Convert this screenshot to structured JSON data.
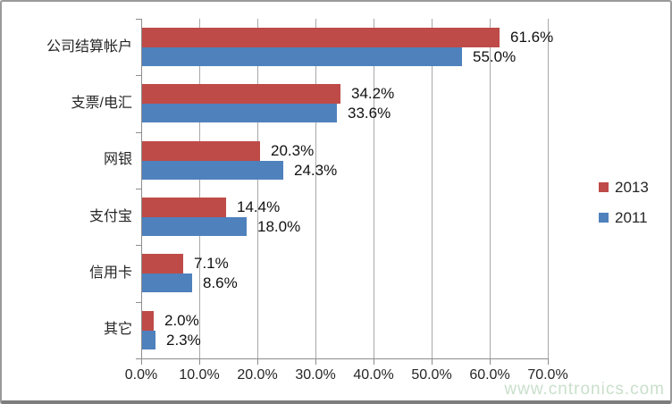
{
  "chart_data": {
    "type": "bar",
    "orientation": "horizontal",
    "categories": [
      "公司结算帐户",
      "支票/电汇",
      "网银",
      "支付宝",
      "信用卡",
      "其它"
    ],
    "series": [
      {
        "name": "2013",
        "color": "#be4b48",
        "values": [
          61.6,
          34.2,
          20.3,
          14.4,
          7.1,
          2.0
        ],
        "labels": [
          "61.6%",
          "34.2%",
          "20.3%",
          "14.4%",
          "7.1%",
          "2.0%"
        ]
      },
      {
        "name": "2011",
        "color": "#4f81bd",
        "values": [
          55.0,
          33.6,
          24.3,
          18.0,
          8.6,
          2.3
        ],
        "labels": [
          "55.0%",
          "33.6%",
          "24.3%",
          "18.0%",
          "8.6%",
          "2.3%"
        ]
      }
    ],
    "x_axis": {
      "min": 0,
      "max": 70,
      "step": 10,
      "tick_labels": [
        "0.0%",
        "10.0%",
        "20.0%",
        "30.0%",
        "40.0%",
        "50.0%",
        "60.0%",
        "70.0%"
      ]
    },
    "legend": {
      "position": "right",
      "entries": [
        {
          "label": "2013",
          "color": "#be4b48"
        },
        {
          "label": "2011",
          "color": "#4f81bd"
        }
      ]
    },
    "gridlines": true,
    "title": ""
  },
  "watermark": {
    "text": "www.cntronics.com",
    "color": "#c9dfcb"
  }
}
